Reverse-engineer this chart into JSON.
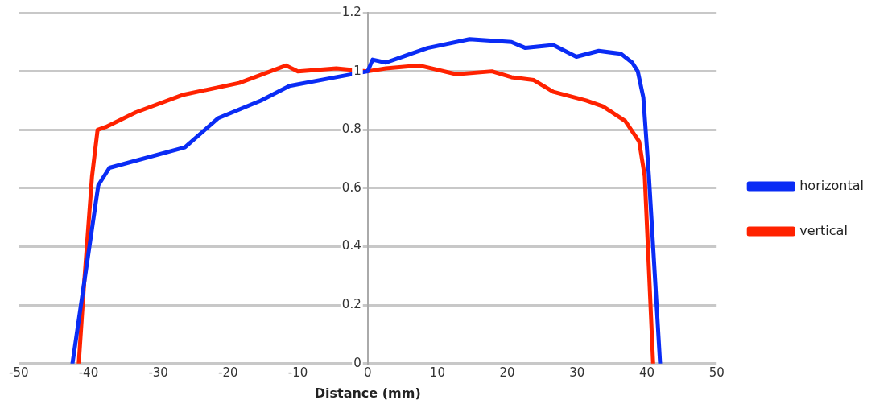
{
  "chart_data": {
    "type": "line",
    "xlabel": "Distance (mm)",
    "xlim": [
      -50,
      50
    ],
    "xticks": [
      -50,
      -40,
      -30,
      -20,
      -10,
      0,
      10,
      20,
      30,
      40,
      50
    ],
    "ylim": [
      0,
      1.2
    ],
    "yticks": [
      0,
      0.2,
      0.4,
      0.6,
      0.8,
      1,
      1.2
    ],
    "grid": "y",
    "legend": "right",
    "marker": "none",
    "line_style": "solid",
    "series": [
      {
        "name": "horizontal",
        "color": "#0a2cf5",
        "x": [
          -42.3,
          -38.6,
          -37,
          -26.2,
          -21.4,
          -15.3,
          -11.2,
          -4.5,
          0,
          0.7,
          2.6,
          8.6,
          14.6,
          20.6,
          22.6,
          26.6,
          29.9,
          33.1,
          36.3,
          37.9,
          38.7,
          39.5,
          40.3,
          41.9
        ],
        "values": [
          0,
          0.61,
          0.67,
          0.74,
          0.84,
          0.9,
          0.95,
          0.98,
          1,
          1.04,
          1.03,
          1.08,
          1.11,
          1.1,
          1.08,
          1.09,
          1.05,
          1.07,
          1.06,
          1.03,
          1,
          0.91,
          0.64,
          0
        ]
      },
      {
        "name": "vertical",
        "color": "#ff2200",
        "x": [
          -41.4,
          -40.7,
          -39.5,
          -38.7,
          -37.5,
          -33.2,
          -26.4,
          -18.4,
          -11.7,
          -10,
          -4.5,
          0,
          2.6,
          7.4,
          12.7,
          17.8,
          20.6,
          23.8,
          26.6,
          31.3,
          33.7,
          36.9,
          38.9,
          39.7,
          40.9
        ],
        "values": [
          0,
          0.25,
          0.64,
          0.8,
          0.81,
          0.86,
          0.92,
          0.96,
          1.02,
          1,
          1.01,
          1,
          1.01,
          1.02,
          0.99,
          1,
          0.98,
          0.97,
          0.93,
          0.9,
          0.88,
          0.83,
          0.76,
          0.64,
          0
        ]
      }
    ]
  }
}
